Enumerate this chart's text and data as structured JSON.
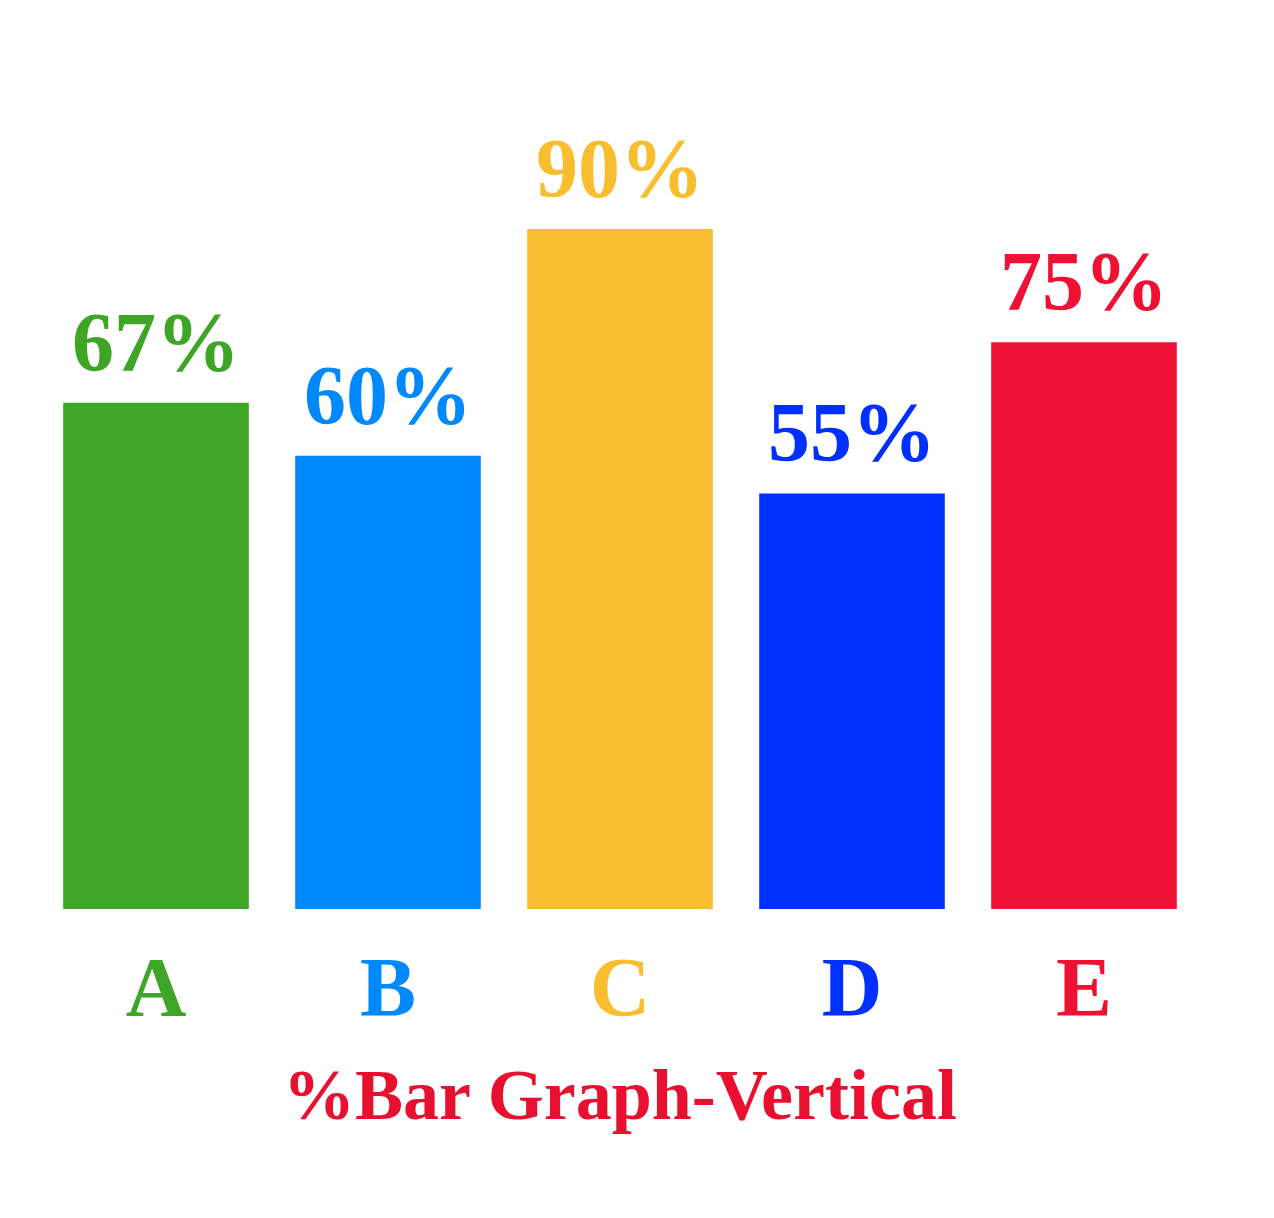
{
  "chart_data": {
    "type": "bar",
    "title": "%Bar Graph-Vertical",
    "categories": [
      "A",
      "B",
      "C",
      "D",
      "E"
    ],
    "values": [
      67,
      60,
      90,
      55,
      75
    ],
    "value_labels": [
      "67%",
      "60%",
      "90%",
      "55%",
      "75%"
    ],
    "colors": [
      "#3ea526",
      "#0088ff",
      "#f9be2f",
      "#0030ff",
      "#ef1133"
    ],
    "tick_labels": "x",
    "grid": false
  }
}
